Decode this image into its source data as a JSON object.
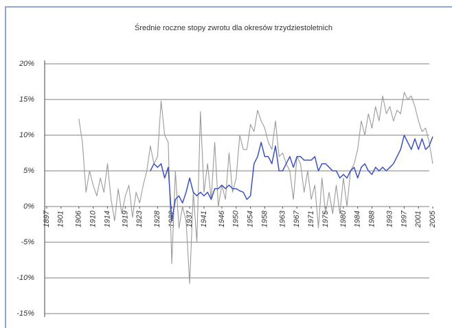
{
  "chart_data": {
    "type": "line",
    "title": "Średnie roczne stopy zwrotu dla okresów trzydziestoletnich",
    "x": [
      1906,
      1907,
      1908,
      1909,
      1910,
      1911,
      1912,
      1913,
      1914,
      1915,
      1916,
      1917,
      1918,
      1919,
      1920,
      1921,
      1922,
      1923,
      1924,
      1925,
      1926,
      1927,
      1928,
      1929,
      1930,
      1931,
      1932,
      1933,
      1934,
      1935,
      1936,
      1937,
      1938,
      1939,
      1940,
      1941,
      1942,
      1943,
      1944,
      1945,
      1946,
      1947,
      1948,
      1949,
      1950,
      1951,
      1952,
      1953,
      1954,
      1955,
      1956,
      1957,
      1958,
      1959,
      1960,
      1961,
      1962,
      1963,
      1964,
      1965,
      1966,
      1967,
      1968,
      1969,
      1970,
      1971,
      1972,
      1973,
      1974,
      1975,
      1976,
      1977,
      1978,
      1979,
      1980,
      1981,
      1982,
      1983,
      1984,
      1985,
      1986,
      1987,
      1988,
      1989,
      1990,
      1991,
      1992,
      1993,
      1994,
      1995,
      1996,
      1997,
      1998,
      1999,
      2000,
      2001,
      2002,
      2003,
      2004,
      2005
    ],
    "series": [
      {
        "color": "#9a9a9a",
        "values": [
          12.3,
          9,
          2,
          5,
          3,
          1.5,
          4,
          2,
          6,
          1,
          -2,
          2.5,
          -1,
          1.5,
          3,
          -1.5,
          2,
          0.5,
          3,
          5,
          8.5,
          6,
          7,
          14.8,
          10,
          9,
          -8,
          5,
          -3,
          0,
          -2,
          -10.8,
          2,
          -5,
          13.3,
          2,
          6,
          1,
          9,
          0,
          3,
          1,
          7.5,
          2,
          4,
          10,
          8,
          8,
          11.5,
          10.5,
          13.5,
          12,
          11,
          9,
          8,
          12,
          7,
          7.5,
          6,
          5,
          1,
          7,
          6,
          2,
          5,
          1,
          3,
          -3,
          4,
          -1,
          2,
          -1,
          3,
          -1,
          4,
          0,
          5,
          6,
          8,
          12,
          10,
          13,
          11,
          14,
          12,
          15.5,
          13,
          14,
          12,
          13.5,
          13,
          16,
          15,
          15.5,
          14,
          12,
          10.5,
          11,
          9,
          6
        ]
      },
      {
        "color": "#3a4fc0",
        "values": [
          null,
          null,
          null,
          null,
          null,
          null,
          null,
          null,
          null,
          null,
          null,
          null,
          null,
          null,
          null,
          null,
          null,
          null,
          null,
          null,
          5,
          6,
          5.5,
          6,
          4,
          5.5,
          -2,
          1,
          1.5,
          0.5,
          2,
          4,
          2,
          1.5,
          2,
          1.5,
          2,
          1,
          2.5,
          2.5,
          3,
          2.5,
          3,
          2.5,
          2.5,
          2.2,
          2,
          1,
          1.5,
          6,
          7,
          9,
          7,
          7,
          6,
          8.5,
          5,
          5,
          6,
          7,
          5.5,
          7,
          7,
          6.5,
          6.5,
          6.5,
          7,
          5,
          6,
          6,
          5.5,
          5,
          5,
          4,
          4.5,
          4,
          5,
          5.5,
          4,
          5.5,
          6,
          5,
          4.5,
          5.5,
          5,
          5.5,
          5,
          5.5,
          6,
          7,
          8,
          10,
          9,
          8,
          9.5,
          8,
          9.5,
          8,
          8.5,
          9.8
        ]
      }
    ],
    "xlim": [
      1897,
      2005
    ],
    "xticks": [
      1897,
      1901,
      1906,
      1910,
      1914,
      1919,
      1923,
      1928,
      1932,
      1937,
      1941,
      1946,
      1950,
      1954,
      1958,
      1963,
      1967,
      1971,
      1975,
      1980,
      1984,
      1988,
      1993,
      1997,
      2001,
      2005
    ],
    "ylim": [
      -15,
      20
    ],
    "yticks": [
      {
        "value": 20,
        "label": "20%"
      },
      {
        "value": 15,
        "label": "15%"
      },
      {
        "value": 10,
        "label": "10%"
      },
      {
        "value": 5,
        "label": "5%"
      },
      {
        "value": 0,
        "label": "0%"
      },
      {
        "value": -5,
        "label": "-5%"
      },
      {
        "value": -10,
        "label": "-10%"
      },
      {
        "value": -15,
        "label": "-15%"
      }
    ],
    "grid": true
  }
}
